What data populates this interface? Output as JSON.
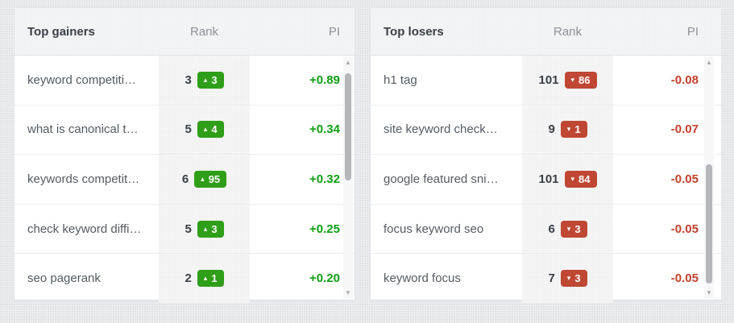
{
  "colors": {
    "page_background": "#e3e5e8",
    "panel_header_background": "#eff1f4",
    "rank_column_background": "#f1f1f2",
    "gain_text": "#0f9e14",
    "loss_text": "#c2402c",
    "badge_up_background": "#2f9e18",
    "badge_down_background": "#bf4733"
  },
  "panels": [
    {
      "title": "Top gainers",
      "columns": {
        "rank": "Rank",
        "pi": "PI"
      },
      "trend": "up",
      "rows": [
        {
          "keyword": "keyword competiti…",
          "rank": "3",
          "change": "3",
          "pi": "+0.89"
        },
        {
          "keyword": "what is canonical t…",
          "rank": "5",
          "change": "4",
          "pi": "+0.34"
        },
        {
          "keyword": "keywords competit…",
          "rank": "6",
          "change": "95",
          "pi": "+0.32"
        },
        {
          "keyword": "check keyword diffi…",
          "rank": "5",
          "change": "3",
          "pi": "+0.25"
        },
        {
          "keyword": "seo pagerank",
          "rank": "2",
          "change": "1",
          "pi": "+0.20"
        }
      ]
    },
    {
      "title": "Top losers",
      "columns": {
        "rank": "Rank",
        "pi": "PI"
      },
      "trend": "down",
      "rows": [
        {
          "keyword": "h1 tag",
          "rank": "101",
          "change": "86",
          "pi": "-0.08"
        },
        {
          "keyword": "site keyword check…",
          "rank": "9",
          "change": "1",
          "pi": "-0.07"
        },
        {
          "keyword": "google featured sni…",
          "rank": "101",
          "change": "84",
          "pi": "-0.05"
        },
        {
          "keyword": "focus keyword seo",
          "rank": "6",
          "change": "3",
          "pi": "-0.05"
        },
        {
          "keyword": "keyword focus",
          "rank": "7",
          "change": "3",
          "pi": "-0.05"
        }
      ]
    }
  ],
  "icons": {
    "up_triangle": "▴",
    "down_triangle": "▾",
    "scroll_up": "▲",
    "scroll_down": "▼"
  }
}
